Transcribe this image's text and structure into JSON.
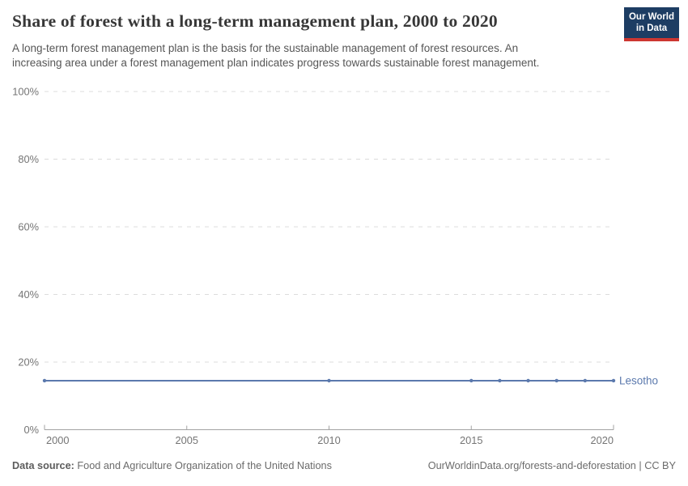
{
  "header": {
    "title": "Share of forest with a long-term management plan, 2000 to 2020",
    "subtitle_lines": [
      "A long-term forest management plan is the basis for the sustainable management of forest resources. An",
      "increasing area under a forest management plan indicates progress towards sustainable forest management."
    ],
    "logo": {
      "line1": "Our World",
      "line2": "in Data",
      "bg_color": "#1d3d63",
      "stripe_color": "#cd3731"
    }
  },
  "chart_data": {
    "type": "line",
    "title": "Share of forest with a long-term management plan, 2000 to 2020",
    "xlabel": "",
    "ylabel": "",
    "xlim": [
      2000,
      2020
    ],
    "ylim": [
      0,
      100
    ],
    "x_ticks": [
      2000,
      2005,
      2010,
      2015,
      2020
    ],
    "y_ticks": [
      0,
      20,
      40,
      60,
      80,
      100
    ],
    "y_tick_suffix": "%",
    "grid": "horizontal-dashed",
    "gridline_color": "#dcdcdc",
    "axis_color": "#a3a3a3",
    "tick_label_color": "#757575",
    "legend_position": "line-end-label",
    "series": [
      {
        "name": "Lesotho",
        "color": "#5b79ad",
        "x": [
          2000,
          2010,
          2015,
          2016,
          2017,
          2018,
          2019,
          2020
        ],
        "values": [
          14.5,
          14.5,
          14.5,
          14.5,
          14.5,
          14.5,
          14.5,
          14.5
        ]
      }
    ]
  },
  "footer": {
    "datasource_label": "Data source:",
    "datasource_value": " Food and Agriculture Organization of the United Nations",
    "attribution": "OurWorldinData.org/forests-and-deforestation | CC BY"
  }
}
